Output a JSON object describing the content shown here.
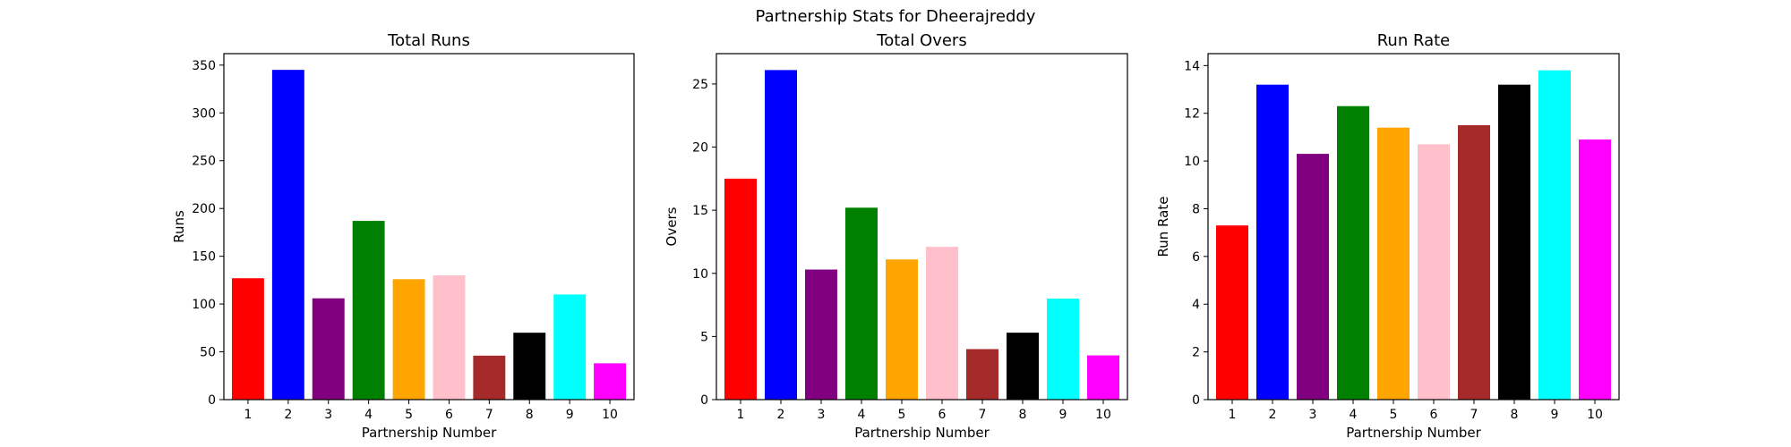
{
  "figure": {
    "title": "Partnership Stats for Dheerajreddy"
  },
  "chart_data": [
    {
      "type": "bar",
      "title": "Total Runs",
      "xlabel": "Partnership Number",
      "ylabel": "Runs",
      "categories": [
        "1",
        "2",
        "3",
        "4",
        "5",
        "6",
        "7",
        "8",
        "9",
        "10"
      ],
      "values": [
        127,
        345,
        106,
        187,
        126,
        130,
        46,
        70,
        110,
        38
      ],
      "colors": [
        "#ff0000",
        "#0000ff",
        "#800080",
        "#008000",
        "#ffa500",
        "#ffc0cb",
        "#a52a2a",
        "#000000",
        "#00ffff",
        "#ff00ff"
      ],
      "ylim": [
        0,
        362
      ],
      "yticks": [
        0,
        50,
        100,
        150,
        200,
        250,
        300,
        350
      ],
      "grid": false
    },
    {
      "type": "bar",
      "title": "Total Overs",
      "xlabel": "Partnership Number",
      "ylabel": "Overs",
      "categories": [
        "1",
        "2",
        "3",
        "4",
        "5",
        "6",
        "7",
        "8",
        "9",
        "10"
      ],
      "values": [
        17.5,
        26.1,
        10.3,
        15.2,
        11.1,
        12.1,
        4.0,
        5.3,
        8.0,
        3.5
      ],
      "colors": [
        "#ff0000",
        "#0000ff",
        "#800080",
        "#008000",
        "#ffa500",
        "#ffc0cb",
        "#a52a2a",
        "#000000",
        "#00ffff",
        "#ff00ff"
      ],
      "ylim": [
        0,
        27.4
      ],
      "yticks": [
        0,
        5,
        10,
        15,
        20,
        25
      ],
      "grid": false
    },
    {
      "type": "bar",
      "title": "Run Rate",
      "xlabel": "Partnership Number",
      "ylabel": "Run Rate",
      "categories": [
        "1",
        "2",
        "3",
        "4",
        "5",
        "6",
        "7",
        "8",
        "9",
        "10"
      ],
      "values": [
        7.3,
        13.2,
        10.3,
        12.3,
        11.4,
        10.7,
        11.5,
        13.2,
        13.8,
        10.9
      ],
      "colors": [
        "#ff0000",
        "#0000ff",
        "#800080",
        "#008000",
        "#ffa500",
        "#ffc0cb",
        "#a52a2a",
        "#000000",
        "#00ffff",
        "#ff00ff"
      ],
      "ylim": [
        0,
        14.5
      ],
      "yticks": [
        0,
        2,
        4,
        6,
        8,
        10,
        12,
        14
      ],
      "grid": false
    }
  ]
}
